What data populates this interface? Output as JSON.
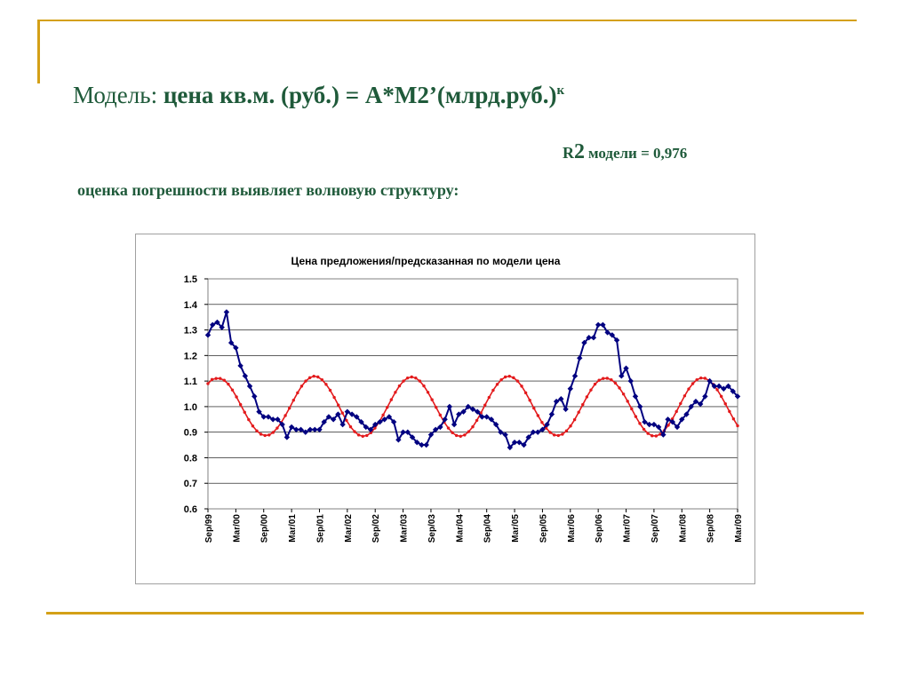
{
  "slide": {
    "title_lead": "Модель:",
    "title_formula": "цена кв.м. (руб.) =  A*M2’(млрд.руб.)",
    "title_exp": "к",
    "r2_letter": "R",
    "r2_power": "2",
    "r2_text": "модели = 0,976",
    "subtitle": "оценка погрешности выявляет волновую структуру:",
    "accent_color": "#d4a017",
    "text_color": "#1f5a3a"
  },
  "chart_data": {
    "type": "line",
    "title": "Цена предложения/предсказанная по модели цена",
    "ylim": [
      0.6,
      1.5
    ],
    "yticks": [
      "1.5",
      "1.4",
      "1.3",
      "1.2",
      "1.1",
      "1.0",
      "0.9",
      "0.8",
      "0.7",
      "0.6"
    ],
    "x_tick_labels": [
      "Sep/99",
      "Mar/00",
      "Sep/00",
      "Mar/01",
      "Sep/01",
      "Mar/02",
      "Sep/02",
      "Mar/03",
      "Sep/03",
      "Mar/04",
      "Sep/04",
      "Mar/05",
      "Sep/05",
      "Mar/06",
      "Sep/06",
      "Mar/07",
      "Sep/07",
      "Mar/08",
      "Sep/08",
      "Mar/09"
    ],
    "x_start": "Sep/99",
    "x_end": "Mar/09",
    "grid": true,
    "legend": "none",
    "series": [
      {
        "color": "#000080",
        "marker": "diamond",
        "values": [
          1.28,
          1.32,
          1.33,
          1.31,
          1.37,
          1.25,
          1.23,
          1.16,
          1.12,
          1.08,
          1.04,
          0.98,
          0.96,
          0.96,
          0.95,
          0.95,
          0.93,
          0.88,
          0.92,
          0.91,
          0.91,
          0.9,
          0.91,
          0.91,
          0.91,
          0.94,
          0.96,
          0.95,
          0.97,
          0.93,
          0.98,
          0.97,
          0.96,
          0.94,
          0.92,
          0.91,
          0.93,
          0.94,
          0.95,
          0.96,
          0.94,
          0.87,
          0.9,
          0.9,
          0.88,
          0.86,
          0.85,
          0.85,
          0.89,
          0.91,
          0.92,
          0.95,
          1.0,
          0.93,
          0.97,
          0.98,
          1.0,
          0.99,
          0.98,
          0.96,
          0.96,
          0.95,
          0.93,
          0.9,
          0.89,
          0.84,
          0.86,
          0.86,
          0.85,
          0.88,
          0.9,
          0.9,
          0.91,
          0.93,
          0.97,
          1.02,
          1.03,
          0.99,
          1.07,
          1.12,
          1.19,
          1.25,
          1.27,
          1.27,
          1.32,
          1.32,
          1.29,
          1.28,
          1.26,
          1.12,
          1.15,
          1.1,
          1.04,
          1.0,
          0.94,
          0.93,
          0.93,
          0.92,
          0.89,
          0.95,
          0.94,
          0.92,
          0.95,
          0.97,
          1.0,
          1.02,
          1.01,
          1.04,
          1.1,
          1.08,
          1.08,
          1.07,
          1.08,
          1.06,
          1.04
        ]
      },
      {
        "color": "#e31a1c",
        "marker": "dot",
        "values": [
          1.09,
          1.106,
          1.11,
          1.11,
          1.103,
          1.088,
          1.065,
          1.038,
          1.008,
          0.978,
          0.949,
          0.924,
          0.905,
          0.892,
          0.887,
          0.889,
          0.899,
          0.916,
          0.938,
          0.965,
          0.994,
          1.025,
          1.054,
          1.08,
          1.1,
          1.113,
          1.119,
          1.116,
          1.105,
          1.087,
          1.064,
          1.036,
          1.006,
          0.975,
          0.946,
          0.921,
          0.902,
          0.889,
          0.884,
          0.887,
          0.898,
          0.916,
          0.939,
          0.967,
          0.997,
          1.027,
          1.056,
          1.081,
          1.1,
          1.112,
          1.116,
          1.112,
          1.1,
          1.081,
          1.056,
          1.027,
          0.997,
          0.967,
          0.939,
          0.916,
          0.898,
          0.887,
          0.884,
          0.889,
          0.902,
          0.921,
          0.946,
          0.975,
          1.006,
          1.036,
          1.064,
          1.087,
          1.105,
          1.116,
          1.119,
          1.113,
          1.1,
          1.08,
          1.054,
          1.025,
          0.994,
          0.965,
          0.938,
          0.916,
          0.899,
          0.889,
          0.887,
          0.892,
          0.905,
          0.924,
          0.949,
          0.978,
          1.008,
          1.038,
          1.065,
          1.088,
          1.103,
          1.11,
          1.111,
          1.105,
          1.092,
          1.073,
          1.049,
          1.021,
          0.991,
          0.961,
          0.934,
          0.911,
          0.895,
          0.886,
          0.885,
          0.892,
          0.906,
          0.927,
          0.952,
          0.981,
          1.012,
          1.042,
          1.069,
          1.09,
          1.105,
          1.112,
          1.111,
          1.102,
          1.087,
          1.066,
          1.04,
          1.011,
          0.981,
          0.952,
          0.925
        ]
      }
    ]
  }
}
